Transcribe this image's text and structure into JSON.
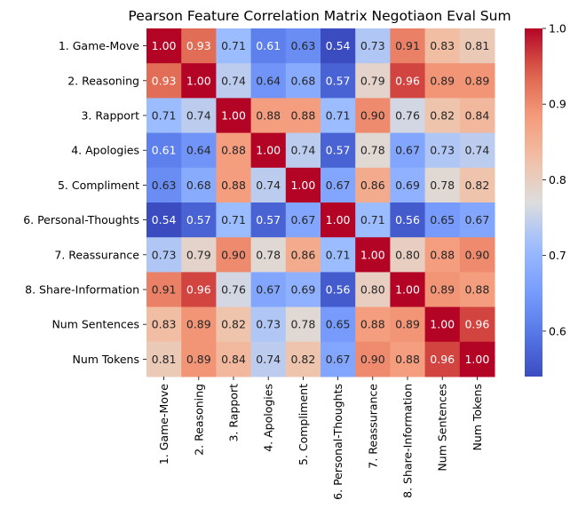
{
  "chart_data": {
    "type": "heatmap",
    "title": "Pearson Feature Correlation Matrix Negotiaon Eval Sum",
    "row_labels": [
      "1. Game-Move",
      "2. Reasoning",
      "3. Rapport",
      "4. Apologies",
      "5. Compliment",
      "6. Personal-Thoughts",
      "7. Reassurance",
      "8. Share-Information",
      "Num Sentences",
      "Num Tokens"
    ],
    "col_labels": [
      "1. Game-Move",
      "2. Reasoning",
      "3. Rapport",
      "4. Apologies",
      "5. Compliment",
      "6. Personal-Thoughts",
      "7. Reassurance",
      "8. Share-Information",
      "Num Sentences",
      "Num Tokens"
    ],
    "values": [
      [
        1.0,
        0.93,
        0.71,
        0.61,
        0.63,
        0.54,
        0.73,
        0.91,
        0.83,
        0.81
      ],
      [
        0.93,
        1.0,
        0.74,
        0.64,
        0.68,
        0.57,
        0.79,
        0.96,
        0.89,
        0.89
      ],
      [
        0.71,
        0.74,
        1.0,
        0.88,
        0.88,
        0.71,
        0.9,
        0.76,
        0.82,
        0.84
      ],
      [
        0.61,
        0.64,
        0.88,
        1.0,
        0.74,
        0.57,
        0.78,
        0.67,
        0.73,
        0.74
      ],
      [
        0.63,
        0.68,
        0.88,
        0.74,
        1.0,
        0.67,
        0.86,
        0.69,
        0.78,
        0.82
      ],
      [
        0.54,
        0.57,
        0.71,
        0.57,
        0.67,
        1.0,
        0.71,
        0.56,
        0.65,
        0.67
      ],
      [
        0.73,
        0.79,
        0.9,
        0.78,
        0.86,
        0.71,
        1.0,
        0.8,
        0.88,
        0.9
      ],
      [
        0.91,
        0.96,
        0.76,
        0.67,
        0.69,
        0.56,
        0.8,
        1.0,
        0.89,
        0.88
      ],
      [
        0.83,
        0.89,
        0.82,
        0.73,
        0.78,
        0.65,
        0.88,
        0.89,
        1.0,
        0.96
      ],
      [
        0.81,
        0.89,
        0.84,
        0.74,
        0.82,
        0.67,
        0.9,
        0.88,
        0.96,
        1.0
      ]
    ],
    "value_format": "2 decimals",
    "colormap": "coolwarm",
    "vmin": 0.54,
    "vmax": 1.0,
    "colorbar": {
      "ticks": [
        0.6,
        0.7,
        0.8,
        0.9,
        1.0
      ],
      "tick_labels": [
        "0.6",
        "0.7",
        "0.8",
        "0.9",
        "1.0"
      ],
      "position": "right"
    },
    "colors": {
      "low": "#3b4cc0",
      "mid": "#dddddd",
      "high": "#b40426"
    }
  }
}
